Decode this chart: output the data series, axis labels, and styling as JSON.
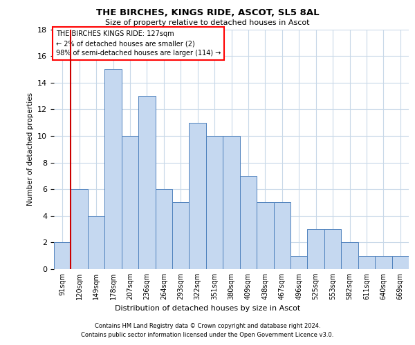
{
  "title1": "THE BIRCHES, KINGS RIDE, ASCOT, SL5 8AL",
  "title2": "Size of property relative to detached houses in Ascot",
  "xlabel": "Distribution of detached houses by size in Ascot",
  "ylabel": "Number of detached properties",
  "footer1": "Contains HM Land Registry data © Crown copyright and database right 2024.",
  "footer2": "Contains public sector information licensed under the Open Government Licence v3.0.",
  "categories": [
    "91sqm",
    "120sqm",
    "149sqm",
    "178sqm",
    "207sqm",
    "236sqm",
    "264sqm",
    "293sqm",
    "322sqm",
    "351sqm",
    "380sqm",
    "409sqm",
    "438sqm",
    "467sqm",
    "496sqm",
    "525sqm",
    "553sqm",
    "582sqm",
    "611sqm",
    "640sqm",
    "669sqm"
  ],
  "values": [
    2,
    6,
    4,
    15,
    10,
    13,
    6,
    5,
    11,
    10,
    10,
    7,
    5,
    5,
    1,
    3,
    3,
    2,
    1,
    1,
    1
  ],
  "bar_color": "#c5d8f0",
  "bar_edge_color": "#4f81bd",
  "highlight_bar_index": 1,
  "highlight_color": "#cc0000",
  "annotation_title": "THE BIRCHES KINGS RIDE: 127sqm",
  "annotation_line1": "← 2% of detached houses are smaller (2)",
  "annotation_line2": "98% of semi-detached houses are larger (114) →",
  "ylim": [
    0,
    18
  ],
  "yticks": [
    0,
    2,
    4,
    6,
    8,
    10,
    12,
    14,
    16,
    18
  ],
  "background_color": "#ffffff",
  "grid_color": "#c8d8e8",
  "fig_width": 6.0,
  "fig_height": 5.0,
  "dpi": 100
}
